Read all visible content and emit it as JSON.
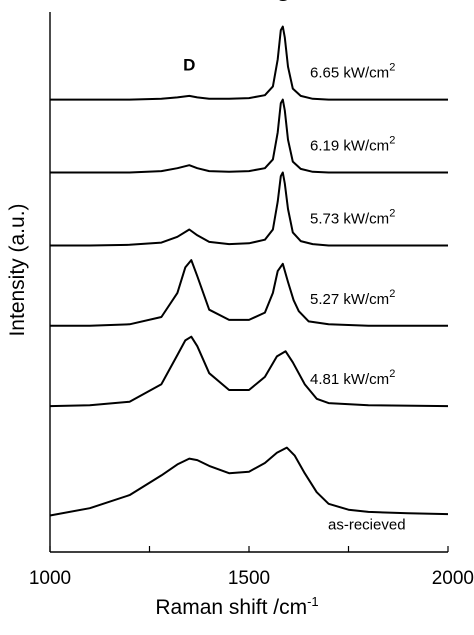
{
  "chart_data": {
    "type": "line",
    "title": "",
    "xlabel": "Raman shift /cm",
    "xlabel_superscript": "-1",
    "ylabel": "Intensity (a.u.)",
    "xlim": [
      1000,
      2000
    ],
    "xticks": [
      1000,
      1500,
      2000
    ],
    "xtick_labels": [
      "1000",
      "1500",
      "2000"
    ],
    "grid": false,
    "legend": "none",
    "line_color": "#000000",
    "peak_labels": [
      {
        "text": "D",
        "x": 1350
      },
      {
        "text": "G",
        "x": 1585
      }
    ],
    "series": [
      {
        "name": "6.65 kW/cm",
        "name_sup": "2",
        "baseline": 6.2,
        "points": [
          [
            1000,
            0
          ],
          [
            1100,
            0
          ],
          [
            1200,
            0
          ],
          [
            1280,
            0.01
          ],
          [
            1320,
            0.03
          ],
          [
            1350,
            0.05
          ],
          [
            1370,
            0.03
          ],
          [
            1400,
            0.01
          ],
          [
            1450,
            0.01
          ],
          [
            1500,
            0.02
          ],
          [
            1540,
            0.06
          ],
          [
            1560,
            0.18
          ],
          [
            1572,
            0.55
          ],
          [
            1580,
            0.95
          ],
          [
            1585,
            1.0
          ],
          [
            1590,
            0.85
          ],
          [
            1598,
            0.45
          ],
          [
            1610,
            0.15
          ],
          [
            1630,
            0.05
          ],
          [
            1660,
            0.01
          ],
          [
            1700,
            0
          ],
          [
            1800,
            0
          ],
          [
            2000,
            0
          ]
        ]
      },
      {
        "name": "6.19 kW/cm",
        "name_sup": "2",
        "baseline": 5.2,
        "points": [
          [
            1000,
            0
          ],
          [
            1100,
            0
          ],
          [
            1200,
            0
          ],
          [
            1280,
            0.02
          ],
          [
            1320,
            0.06
          ],
          [
            1350,
            0.1
          ],
          [
            1370,
            0.06
          ],
          [
            1400,
            0.02
          ],
          [
            1450,
            0.01
          ],
          [
            1500,
            0.02
          ],
          [
            1540,
            0.06
          ],
          [
            1560,
            0.18
          ],
          [
            1572,
            0.55
          ],
          [
            1580,
            0.95
          ],
          [
            1585,
            1.0
          ],
          [
            1590,
            0.85
          ],
          [
            1598,
            0.45
          ],
          [
            1610,
            0.15
          ],
          [
            1630,
            0.05
          ],
          [
            1660,
            0.01
          ],
          [
            1700,
            0
          ],
          [
            1800,
            0
          ],
          [
            2000,
            0
          ]
        ]
      },
      {
        "name": "5.73 kW/cm",
        "name_sup": "2",
        "baseline": 4.2,
        "points": [
          [
            1000,
            0
          ],
          [
            1100,
            0
          ],
          [
            1200,
            0.01
          ],
          [
            1280,
            0.04
          ],
          [
            1320,
            0.12
          ],
          [
            1350,
            0.22
          ],
          [
            1370,
            0.14
          ],
          [
            1400,
            0.05
          ],
          [
            1450,
            0.02
          ],
          [
            1500,
            0.03
          ],
          [
            1540,
            0.08
          ],
          [
            1560,
            0.22
          ],
          [
            1572,
            0.6
          ],
          [
            1580,
            0.95
          ],
          [
            1585,
            1.0
          ],
          [
            1590,
            0.85
          ],
          [
            1598,
            0.5
          ],
          [
            1610,
            0.18
          ],
          [
            1630,
            0.06
          ],
          [
            1660,
            0.02
          ],
          [
            1700,
            0
          ],
          [
            1800,
            0
          ],
          [
            2000,
            0
          ]
        ]
      },
      {
        "name": "5.27 kW/cm",
        "name_sup": "2",
        "baseline": 3.1,
        "points": [
          [
            1000,
            0
          ],
          [
            1100,
            0
          ],
          [
            1200,
            0.02
          ],
          [
            1280,
            0.12
          ],
          [
            1320,
            0.45
          ],
          [
            1340,
            0.8
          ],
          [
            1355,
            0.9
          ],
          [
            1370,
            0.68
          ],
          [
            1400,
            0.22
          ],
          [
            1450,
            0.08
          ],
          [
            1500,
            0.08
          ],
          [
            1540,
            0.18
          ],
          [
            1560,
            0.45
          ],
          [
            1572,
            0.75
          ],
          [
            1585,
            0.85
          ],
          [
            1598,
            0.6
          ],
          [
            1612,
            0.35
          ],
          [
            1625,
            0.2
          ],
          [
            1650,
            0.06
          ],
          [
            1700,
            0.02
          ],
          [
            1800,
            0
          ],
          [
            2000,
            0
          ]
        ]
      },
      {
        "name": "4.81 kW/cm",
        "name_sup": "2",
        "baseline": 2.0,
        "points": [
          [
            1000,
            0
          ],
          [
            1100,
            0.01
          ],
          [
            1200,
            0.06
          ],
          [
            1280,
            0.3
          ],
          [
            1320,
            0.7
          ],
          [
            1340,
            0.9
          ],
          [
            1355,
            0.95
          ],
          [
            1370,
            0.82
          ],
          [
            1400,
            0.45
          ],
          [
            1450,
            0.22
          ],
          [
            1500,
            0.22
          ],
          [
            1540,
            0.4
          ],
          [
            1570,
            0.68
          ],
          [
            1592,
            0.75
          ],
          [
            1610,
            0.6
          ],
          [
            1640,
            0.3
          ],
          [
            1670,
            0.1
          ],
          [
            1700,
            0.04
          ],
          [
            1800,
            0.01
          ],
          [
            2000,
            0
          ]
        ]
      },
      {
        "name": "as-recieved",
        "name_sup": "",
        "baseline": 0.5,
        "points": [
          [
            1000,
            0
          ],
          [
            1100,
            0.1
          ],
          [
            1200,
            0.28
          ],
          [
            1280,
            0.55
          ],
          [
            1320,
            0.7
          ],
          [
            1350,
            0.78
          ],
          [
            1370,
            0.76
          ],
          [
            1400,
            0.68
          ],
          [
            1450,
            0.58
          ],
          [
            1500,
            0.6
          ],
          [
            1540,
            0.72
          ],
          [
            1570,
            0.86
          ],
          [
            1595,
            0.93
          ],
          [
            1615,
            0.82
          ],
          [
            1640,
            0.58
          ],
          [
            1670,
            0.32
          ],
          [
            1700,
            0.16
          ],
          [
            1750,
            0.08
          ],
          [
            1800,
            0.05
          ],
          [
            1900,
            0.03
          ],
          [
            2000,
            0.02
          ]
        ]
      }
    ]
  }
}
